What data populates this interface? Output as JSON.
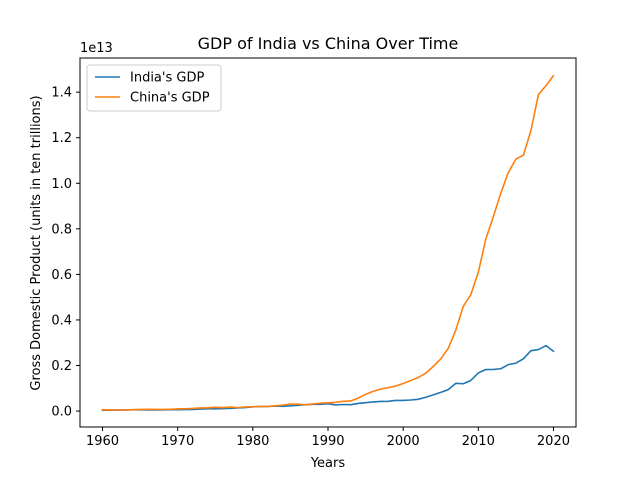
{
  "chart_data": {
    "type": "line",
    "title": "GDP of India vs China Over Time",
    "xlabel": "Years",
    "ylabel": "Gross Domestic Product (units in ten trillions)",
    "y_offset_text": "1e13",
    "xlim": [
      1957,
      2023
    ],
    "ylim": [
      -0.07,
      1.55
    ],
    "x_ticks": [
      1960,
      1970,
      1980,
      1990,
      2000,
      2010,
      2020
    ],
    "x_tick_labels": [
      "1960",
      "1970",
      "1980",
      "1990",
      "2000",
      "2010",
      "2020"
    ],
    "y_ticks": [
      0.0,
      0.2,
      0.4,
      0.6,
      0.8,
      1.0,
      1.2,
      1.4
    ],
    "y_tick_labels": [
      "0.0",
      "0.2",
      "0.4",
      "0.6",
      "0.8",
      "1.0",
      "1.2",
      "1.4"
    ],
    "grid": false,
    "legend_position": "top-left",
    "x": [
      1960,
      1961,
      1962,
      1963,
      1964,
      1965,
      1966,
      1967,
      1968,
      1969,
      1970,
      1971,
      1972,
      1973,
      1974,
      1975,
      1976,
      1977,
      1978,
      1979,
      1980,
      1981,
      1982,
      1983,
      1984,
      1985,
      1986,
      1987,
      1988,
      1989,
      1990,
      1991,
      1992,
      1993,
      1994,
      1995,
      1996,
      1997,
      1998,
      1999,
      2000,
      2001,
      2002,
      2003,
      2004,
      2005,
      2006,
      2007,
      2008,
      2009,
      2010,
      2011,
      2012,
      2013,
      2014,
      2015,
      2016,
      2017,
      2018,
      2019,
      2020
    ],
    "series": [
      {
        "name": "India's GDP",
        "color": "#1f77b4",
        "values": [
          0.0037,
          0.0039,
          0.0042,
          0.0048,
          0.0056,
          0.0059,
          0.0046,
          0.005,
          0.0053,
          0.0058,
          0.0062,
          0.0067,
          0.0071,
          0.0085,
          0.0099,
          0.0098,
          0.0102,
          0.0121,
          0.0136,
          0.0153,
          0.0186,
          0.0196,
          0.0201,
          0.0218,
          0.0209,
          0.0232,
          0.0249,
          0.0279,
          0.0297,
          0.0296,
          0.0321,
          0.027,
          0.0288,
          0.0279,
          0.0333,
          0.0367,
          0.04,
          0.0422,
          0.0428,
          0.0467,
          0.0468,
          0.0485,
          0.0515,
          0.0608,
          0.0709,
          0.082,
          0.094,
          0.1216,
          0.1199,
          0.1342,
          0.1676,
          0.1823,
          0.1827,
          0.1857,
          0.2039,
          0.2104,
          0.2295,
          0.2651,
          0.2701,
          0.2871,
          0.2623
        ]
      },
      {
        "name": "China's GDP",
        "color": "#ff7f0e",
        "values": [
          0.006,
          0.005,
          0.0047,
          0.0051,
          0.006,
          0.0071,
          0.0077,
          0.0072,
          0.007,
          0.0079,
          0.0093,
          0.01,
          0.0114,
          0.0139,
          0.0144,
          0.0163,
          0.0154,
          0.0175,
          0.015,
          0.0178,
          0.0191,
          0.0196,
          0.0205,
          0.023,
          0.026,
          0.0309,
          0.0301,
          0.0273,
          0.0312,
          0.0348,
          0.0361,
          0.0383,
          0.0427,
          0.0444,
          0.0564,
          0.0734,
          0.0864,
          0.0962,
          0.1029,
          0.1094,
          0.1211,
          0.1339,
          0.1471,
          0.166,
          0.1955,
          0.2286,
          0.2752,
          0.355,
          0.4594,
          0.5102,
          0.6087,
          0.7552,
          0.8532,
          0.957,
          1.0476,
          1.1062,
          1.1233,
          1.231,
          1.3895,
          1.428,
          1.4723
        ]
      }
    ]
  }
}
